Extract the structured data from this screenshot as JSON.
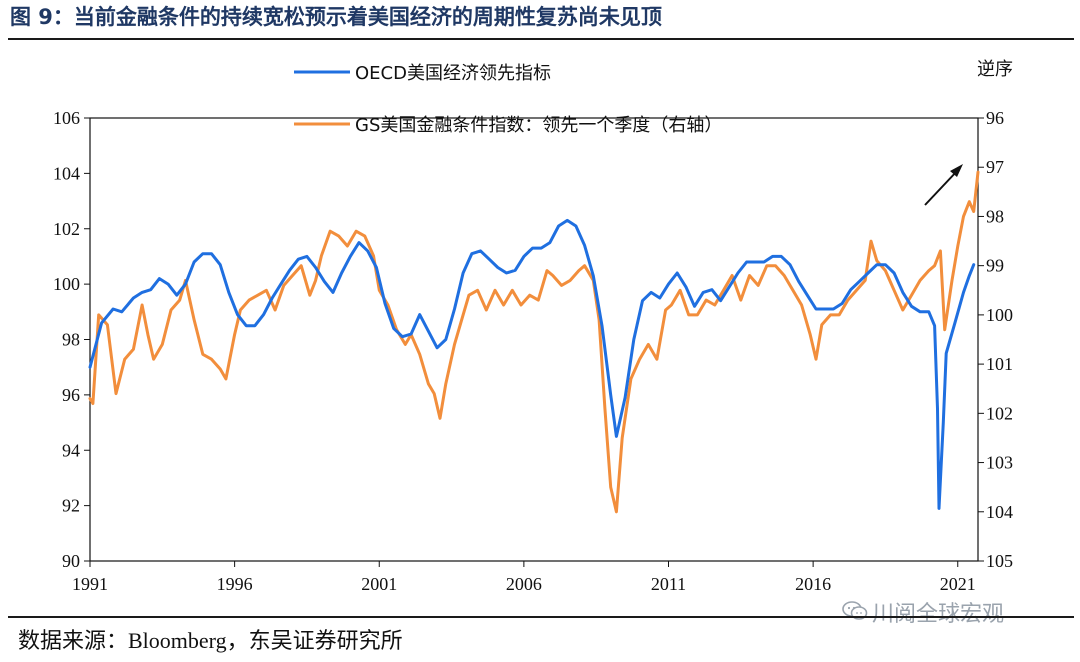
{
  "figure": {
    "title": "图 9：当前金融条件的持续宽松预示着美国经济的周期性复苏尚未见顶",
    "source": "数据来源：Bloomberg，东吴证券研究所",
    "watermark": "川阅全球宏观",
    "watermark_icon": "wechat-icon"
  },
  "colors": {
    "oecd": "#1f6fe0",
    "gs": "#f28e3c",
    "accent_title": "#1f3864"
  },
  "chart_data": {
    "type": "line",
    "title": "",
    "xlabel": "",
    "x_ticks": [
      "1991",
      "1996",
      "2001",
      "2006",
      "2011",
      "2016",
      "2021"
    ],
    "xlim": [
      1991,
      2021.7
    ],
    "y_left": {
      "range": [
        90,
        106
      ],
      "ticks": [
        "90",
        "92",
        "94",
        "96",
        "98",
        "100",
        "102",
        "104",
        "106"
      ]
    },
    "y_right": {
      "label": "逆序",
      "range": [
        105,
        96
      ],
      "inverted": true,
      "ticks": [
        "96",
        "97",
        "98",
        "99",
        "100",
        "101",
        "102",
        "103",
        "104",
        "105"
      ]
    },
    "annotation": "arrow-up-right",
    "series": [
      {
        "name": "OECD美国经济领先指标",
        "axis": "left",
        "points": [
          [
            1991.0,
            97.0
          ],
          [
            1991.4,
            98.6
          ],
          [
            1991.8,
            99.1
          ],
          [
            1992.1,
            99.0
          ],
          [
            1992.5,
            99.5
          ],
          [
            1992.8,
            99.7
          ],
          [
            1993.1,
            99.8
          ],
          [
            1993.4,
            100.2
          ],
          [
            1993.7,
            100.0
          ],
          [
            1994.0,
            99.6
          ],
          [
            1994.3,
            100.0
          ],
          [
            1994.6,
            100.8
          ],
          [
            1994.9,
            101.1
          ],
          [
            1995.2,
            101.1
          ],
          [
            1995.5,
            100.7
          ],
          [
            1995.8,
            99.7
          ],
          [
            1996.1,
            98.9
          ],
          [
            1996.4,
            98.5
          ],
          [
            1996.7,
            98.5
          ],
          [
            1997.0,
            98.9
          ],
          [
            1997.3,
            99.5
          ],
          [
            1997.6,
            100.0
          ],
          [
            1997.9,
            100.5
          ],
          [
            1998.2,
            100.9
          ],
          [
            1998.5,
            101.0
          ],
          [
            1998.8,
            100.6
          ],
          [
            1999.1,
            100.1
          ],
          [
            1999.4,
            99.7
          ],
          [
            1999.7,
            100.4
          ],
          [
            2000.0,
            101.0
          ],
          [
            2000.3,
            101.5
          ],
          [
            2000.6,
            101.2
          ],
          [
            2000.9,
            100.6
          ],
          [
            2001.2,
            99.3
          ],
          [
            2001.5,
            98.4
          ],
          [
            2001.8,
            98.1
          ],
          [
            2002.1,
            98.2
          ],
          [
            2002.4,
            98.9
          ],
          [
            2002.7,
            98.3
          ],
          [
            2003.0,
            97.7
          ],
          [
            2003.3,
            98.0
          ],
          [
            2003.6,
            99.1
          ],
          [
            2003.9,
            100.4
          ],
          [
            2004.2,
            101.1
          ],
          [
            2004.5,
            101.2
          ],
          [
            2004.8,
            100.9
          ],
          [
            2005.1,
            100.6
          ],
          [
            2005.4,
            100.4
          ],
          [
            2005.7,
            100.5
          ],
          [
            2006.0,
            101.0
          ],
          [
            2006.3,
            101.3
          ],
          [
            2006.6,
            101.3
          ],
          [
            2006.9,
            101.5
          ],
          [
            2007.2,
            102.1
          ],
          [
            2007.5,
            102.3
          ],
          [
            2007.8,
            102.1
          ],
          [
            2008.1,
            101.4
          ],
          [
            2008.4,
            100.3
          ],
          [
            2008.7,
            98.5
          ],
          [
            2009.0,
            96.0
          ],
          [
            2009.2,
            94.5
          ],
          [
            2009.5,
            95.9
          ],
          [
            2009.8,
            98.0
          ],
          [
            2010.1,
            99.4
          ],
          [
            2010.4,
            99.7
          ],
          [
            2010.7,
            99.5
          ],
          [
            2011.0,
            100.0
          ],
          [
            2011.3,
            100.4
          ],
          [
            2011.6,
            99.9
          ],
          [
            2011.9,
            99.2
          ],
          [
            2012.2,
            99.7
          ],
          [
            2012.5,
            99.8
          ],
          [
            2012.8,
            99.4
          ],
          [
            2013.1,
            99.9
          ],
          [
            2013.4,
            100.4
          ],
          [
            2013.7,
            100.8
          ],
          [
            2014.0,
            100.8
          ],
          [
            2014.3,
            100.8
          ],
          [
            2014.6,
            101.0
          ],
          [
            2014.9,
            101.0
          ],
          [
            2015.2,
            100.7
          ],
          [
            2015.5,
            100.1
          ],
          [
            2015.8,
            99.6
          ],
          [
            2016.1,
            99.1
          ],
          [
            2016.4,
            99.1
          ],
          [
            2016.7,
            99.1
          ],
          [
            2017.0,
            99.3
          ],
          [
            2017.3,
            99.8
          ],
          [
            2017.6,
            100.1
          ],
          [
            2017.9,
            100.4
          ],
          [
            2018.2,
            100.7
          ],
          [
            2018.5,
            100.7
          ],
          [
            2018.8,
            100.4
          ],
          [
            2019.1,
            99.7
          ],
          [
            2019.4,
            99.2
          ],
          [
            2019.7,
            99.0
          ],
          [
            2020.0,
            99.0
          ],
          [
            2020.2,
            98.5
          ],
          [
            2020.3,
            95.5
          ],
          [
            2020.35,
            91.9
          ],
          [
            2020.5,
            95.0
          ],
          [
            2020.6,
            97.5
          ],
          [
            2020.9,
            98.6
          ],
          [
            2021.2,
            99.7
          ],
          [
            2021.4,
            100.3
          ],
          [
            2021.55,
            100.7
          ]
        ]
      },
      {
        "name": "GS美国金融条件指数：领先一个季度（右轴）",
        "axis": "right",
        "points": [
          [
            1991.0,
            101.7
          ],
          [
            1991.1,
            101.8
          ],
          [
            1991.3,
            100.0
          ],
          [
            1991.6,
            100.2
          ],
          [
            1991.9,
            101.6
          ],
          [
            1992.2,
            100.9
          ],
          [
            1992.5,
            100.7
          ],
          [
            1992.8,
            99.8
          ],
          [
            1993.0,
            100.4
          ],
          [
            1993.2,
            100.9
          ],
          [
            1993.5,
            100.6
          ],
          [
            1993.8,
            99.9
          ],
          [
            1994.1,
            99.7
          ],
          [
            1994.3,
            99.3
          ],
          [
            1994.6,
            100.1
          ],
          [
            1994.9,
            100.8
          ],
          [
            1995.2,
            100.9
          ],
          [
            1995.5,
            101.1
          ],
          [
            1995.7,
            101.3
          ],
          [
            1996.0,
            100.4
          ],
          [
            1996.2,
            99.9
          ],
          [
            1996.5,
            99.7
          ],
          [
            1996.8,
            99.6
          ],
          [
            1997.1,
            99.5
          ],
          [
            1997.4,
            99.9
          ],
          [
            1997.7,
            99.4
          ],
          [
            1998.0,
            99.2
          ],
          [
            1998.3,
            99.0
          ],
          [
            1998.6,
            99.6
          ],
          [
            1998.8,
            99.3
          ],
          [
            1999.0,
            98.8
          ],
          [
            1999.3,
            98.3
          ],
          [
            1999.6,
            98.4
          ],
          [
            1999.9,
            98.6
          ],
          [
            2000.2,
            98.3
          ],
          [
            2000.5,
            98.4
          ],
          [
            2000.8,
            98.8
          ],
          [
            2001.0,
            99.5
          ],
          [
            2001.3,
            99.8
          ],
          [
            2001.6,
            100.3
          ],
          [
            2001.9,
            100.6
          ],
          [
            2002.1,
            100.4
          ],
          [
            2002.4,
            100.8
          ],
          [
            2002.7,
            101.4
          ],
          [
            2002.9,
            101.6
          ],
          [
            2003.1,
            102.1
          ],
          [
            2003.3,
            101.4
          ],
          [
            2003.6,
            100.6
          ],
          [
            2003.9,
            100.0
          ],
          [
            2004.1,
            99.6
          ],
          [
            2004.4,
            99.5
          ],
          [
            2004.7,
            99.9
          ],
          [
            2005.0,
            99.5
          ],
          [
            2005.3,
            99.8
          ],
          [
            2005.6,
            99.5
          ],
          [
            2005.9,
            99.8
          ],
          [
            2006.2,
            99.6
          ],
          [
            2006.5,
            99.7
          ],
          [
            2006.8,
            99.1
          ],
          [
            2007.0,
            99.2
          ],
          [
            2007.3,
            99.4
          ],
          [
            2007.6,
            99.3
          ],
          [
            2007.9,
            99.1
          ],
          [
            2008.1,
            99.0
          ],
          [
            2008.4,
            99.3
          ],
          [
            2008.6,
            100.1
          ],
          [
            2008.8,
            101.9
          ],
          [
            2009.0,
            103.5
          ],
          [
            2009.2,
            104.0
          ],
          [
            2009.4,
            102.5
          ],
          [
            2009.7,
            101.3
          ],
          [
            2010.0,
            100.9
          ],
          [
            2010.3,
            100.6
          ],
          [
            2010.6,
            100.9
          ],
          [
            2010.9,
            99.9
          ],
          [
            2011.1,
            99.8
          ],
          [
            2011.4,
            99.5
          ],
          [
            2011.7,
            100.0
          ],
          [
            2012.0,
            100.0
          ],
          [
            2012.3,
            99.7
          ],
          [
            2012.6,
            99.8
          ],
          [
            2012.9,
            99.5
          ],
          [
            2013.2,
            99.2
          ],
          [
            2013.5,
            99.7
          ],
          [
            2013.8,
            99.2
          ],
          [
            2014.1,
            99.4
          ],
          [
            2014.4,
            99.0
          ],
          [
            2014.7,
            99.0
          ],
          [
            2015.0,
            99.2
          ],
          [
            2015.3,
            99.5
          ],
          [
            2015.6,
            99.8
          ],
          [
            2015.9,
            100.4
          ],
          [
            2016.1,
            100.9
          ],
          [
            2016.3,
            100.2
          ],
          [
            2016.6,
            100.0
          ],
          [
            2016.9,
            100.0
          ],
          [
            2017.2,
            99.7
          ],
          [
            2017.5,
            99.5
          ],
          [
            2017.8,
            99.3
          ],
          [
            2018.0,
            98.5
          ],
          [
            2018.2,
            98.9
          ],
          [
            2018.5,
            99.1
          ],
          [
            2018.8,
            99.5
          ],
          [
            2019.1,
            99.9
          ],
          [
            2019.4,
            99.6
          ],
          [
            2019.7,
            99.3
          ],
          [
            2020.0,
            99.1
          ],
          [
            2020.2,
            99.0
          ],
          [
            2020.4,
            98.7
          ],
          [
            2020.55,
            100.3
          ],
          [
            2020.8,
            99.3
          ],
          [
            2021.0,
            98.6
          ],
          [
            2021.2,
            98.0
          ],
          [
            2021.4,
            97.7
          ],
          [
            2021.55,
            97.9
          ],
          [
            2021.7,
            97.1
          ]
        ]
      }
    ]
  }
}
